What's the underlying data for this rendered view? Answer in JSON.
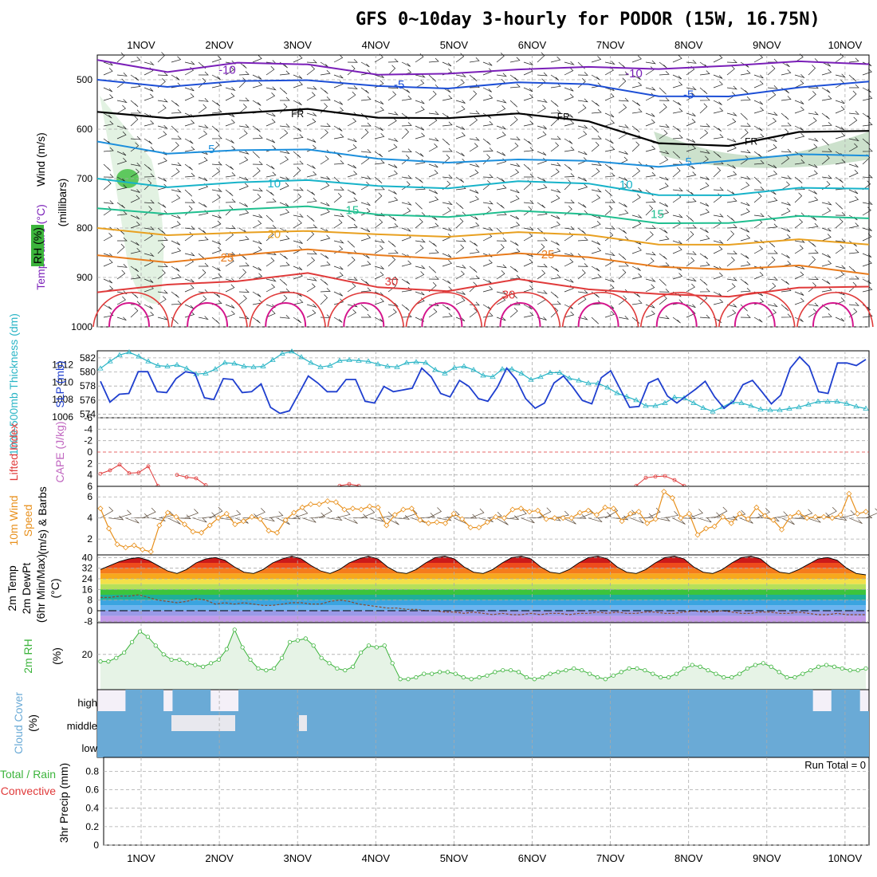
{
  "title": "GFS 0~10day 3-hourly for PODOR (15W, 16.75N)",
  "dates": [
    "1NOV",
    "2NOV",
    "3NOV",
    "4NOV",
    "5NOV",
    "6NOV",
    "7NOV",
    "8NOV",
    "9NOV",
    "10NOV"
  ],
  "colors": {
    "temp_cold": "#7a1fb8",
    "temp_m5": "#1d4fd6",
    "temp_fr": "#000000",
    "temp_5": "#1c8fdc",
    "temp_10": "#17b3c9",
    "temp_15": "#1fbf8f",
    "temp_20": "#e8a020",
    "temp_25": "#e87b1c",
    "temp_30": "#e03a3a",
    "temp_35": "#d4148c",
    "rh": "#3cb43c",
    "thickness": "#2ab5c6",
    "slp": "#1f3fcf",
    "lifted": "#e03a3a",
    "wind": "#e8901c",
    "cloud": "#6aaad6",
    "dewpoint": "#8b4a2a",
    "rain": "#3cb43c",
    "conv": "#e03a3a"
  },
  "chart_data": [
    {
      "panel": "upper_air",
      "type": "line",
      "ylabel_wind": "Wind (m/s)",
      "ylabel_temp": "Temperature (°C)",
      "ylabel_rh": "RH (%)",
      "ylabel_units": "(millibars)",
      "y_ticks": [
        "500",
        "600",
        "700",
        "800",
        "900",
        "1000"
      ],
      "ylim": [
        450,
        1000
      ],
      "contour_labels": [
        {
          "text": "-10",
          "x": 1.1,
          "p": 480
        },
        {
          "text": "-10",
          "x": 6.3,
          "p": 487
        },
        {
          "text": "-5",
          "x": 3.3,
          "p": 510
        },
        {
          "text": "-5",
          "x": 7.0,
          "p": 530
        },
        {
          "text": "FR",
          "x": 2.0,
          "p": 568
        },
        {
          "text": "FR",
          "x": 5.4,
          "p": 573
        },
        {
          "text": "FR",
          "x": 7.8,
          "p": 623
        },
        {
          "text": "5",
          "x": 0.9,
          "p": 640
        },
        {
          "text": "5",
          "x": 7.0,
          "p": 666
        },
        {
          "text": "10",
          "x": 1.7,
          "p": 710
        },
        {
          "text": "10",
          "x": 6.2,
          "p": 712
        },
        {
          "text": "15",
          "x": 2.7,
          "p": 764
        },
        {
          "text": "15",
          "x": 6.6,
          "p": 772
        },
        {
          "text": "20",
          "x": 1.7,
          "p": 812
        },
        {
          "text": "25",
          "x": 1.1,
          "p": 860
        },
        {
          "text": "25",
          "x": 5.2,
          "p": 853
        },
        {
          "text": "30",
          "x": 3.2,
          "p": 908
        },
        {
          "text": "30",
          "x": 4.7,
          "p": 935
        }
      ]
    },
    {
      "panel": "thickness_slp",
      "type": "line",
      "ylabel_thickness": "1000-500mb Thickness (dm)",
      "ylabel_slp": "SLP (mb)",
      "thickness_ticks": [
        "582",
        "580",
        "578",
        "576",
        "574"
      ],
      "slp_ticks": [
        "1012",
        "1010",
        "1008",
        "1006"
      ],
      "series": [
        {
          "name": "1000-500mb Thickness (dm)",
          "ylim": [
            573.5,
            583
          ],
          "values": [
            580.5,
            581.5,
            582.4,
            582.8,
            582.2,
            581.5,
            580.9,
            580.8,
            581.0,
            580.5,
            579.7,
            579.8,
            580.4,
            581.3,
            581.2,
            580.8,
            580.7,
            580.8,
            581.7,
            582.6,
            582.9,
            582.1,
            581.3,
            580.7,
            580.9,
            581.6,
            581.7,
            581.6,
            581.5,
            581.1,
            580.8,
            580.7,
            581.3,
            581.4,
            581.3,
            580.3,
            579.8,
            580.6,
            580.8,
            580.3,
            579.5,
            579.3,
            580.4,
            580.4,
            579.8,
            578.9,
            579.3,
            579.9,
            579.9,
            579.1,
            578.8,
            578.4,
            578.4,
            577.8,
            577.0,
            576.5,
            576.0,
            575.2,
            575.2,
            575.6,
            576.4,
            576.3,
            575.6,
            574.9,
            574.4,
            575.0,
            575.7,
            575.6,
            575.2,
            574.7,
            574.6,
            574.6,
            574.8,
            575.0,
            575.4,
            575.8,
            575.8,
            575.8,
            575.5,
            575.1,
            574.8
          ]
        },
        {
          "name": "SLP (mb)",
          "ylim": [
            1005.9,
            1013.6
          ],
          "values": [
            1010.1,
            1007.7,
            1008.6,
            1008.7,
            1011.2,
            1011.2,
            1008.9,
            1008.8,
            1010.4,
            1011.2,
            1011.0,
            1008.2,
            1008.0,
            1010.4,
            1010.3,
            1008.8,
            1008.9,
            1009.8,
            1007.1,
            1006.4,
            1006.7,
            1008.7,
            1010.7,
            1009.9,
            1008.9,
            1008.9,
            1010.3,
            1010.3,
            1007.8,
            1007.6,
            1009.5,
            1008.9,
            1009.1,
            1009.3,
            1011.6,
            1010.6,
            1008.7,
            1008.3,
            1010.2,
            1009.5,
            1008.1,
            1007.8,
            1009.4,
            1011.6,
            1010.3,
            1008.1,
            1007.0,
            1007.6,
            1009.9,
            1010.7,
            1009.4,
            1007.9,
            1007.5,
            1010.5,
            1011.3,
            1009.2,
            1007.1,
            1007.2,
            1009.9,
            1010.4,
            1008.4,
            1007.6,
            1008.4,
            1009.2,
            1010.1,
            1008.3,
            1007.0,
            1007.8,
            1009.7,
            1010.2,
            1008.9,
            1007.5,
            1008.5,
            1011.6,
            1012.9,
            1011.8,
            1008.9,
            1008.7,
            1012.2,
            1012.2,
            1011.9,
            1012.6
          ]
        }
      ]
    },
    {
      "panel": "stability",
      "type": "line",
      "ylabel_lifted": "Lifted Index",
      "ylabel_cape": "CAPE (J/kg)",
      "y_ticks": [
        "-6",
        "-4",
        "-2",
        "0",
        "2",
        "4",
        "6"
      ],
      "ylim": [
        -6,
        6
      ],
      "series": [
        {
          "name": "Lifted Index",
          "points": [
            [
              0,
              3.8
            ],
            [
              1,
              3.2
            ],
            [
              2,
              2.2
            ],
            [
              3,
              3.7
            ],
            [
              4,
              3.6
            ],
            [
              5,
              2.5
            ],
            [
              6,
              5.9
            ]
          ]
        },
        {
          "name": "Lifted Index",
          "points": [
            [
              8,
              4.0
            ],
            [
              9,
              4.4
            ],
            [
              10,
              4.6
            ],
            [
              11,
              5.8
            ]
          ]
        },
        {
          "name": "Lifted Index",
          "points": [
            [
              25,
              5.9
            ],
            [
              26,
              5.6
            ],
            [
              27,
              5.9
            ]
          ]
        },
        {
          "name": "Lifted Index",
          "points": [
            [
              56,
              5.9
            ],
            [
              57,
              4.5
            ],
            [
              58,
              4.3
            ],
            [
              59,
              4.2
            ],
            [
              60,
              4.9
            ],
            [
              61,
              5.9
            ]
          ]
        }
      ]
    },
    {
      "panel": "wind10m",
      "type": "line",
      "ylabel_wind": "10m Wind",
      "ylabel_speed": "Speed",
      "ylabel_units": "(m/s) & Barbs",
      "y_ticks": [
        "2",
        "4",
        "6"
      ],
      "ylim": [
        0.5,
        7
      ],
      "series": [
        {
          "name": "10m Wind Speed (m/s)",
          "values": [
            4.9,
            3.0,
            1.5,
            1.2,
            1.4,
            1.0,
            0.8,
            3.3,
            4.5,
            4.1,
            3.4,
            2.7,
            2.6,
            3.3,
            4.0,
            4.4,
            3.4,
            3.7,
            4.1,
            3.9,
            2.8,
            2.6,
            3.8,
            4.5,
            5.0,
            5.3,
            5.3,
            5.6,
            5.5,
            4.8,
            4.9,
            4.8,
            5.1,
            5.0,
            3.3,
            4.3,
            4.8,
            4.9,
            3.8,
            3.5,
            3.6,
            3.5,
            4.4,
            3.9,
            3.1,
            3.1,
            3.6,
            4.1,
            4.0,
            4.8,
            4.9,
            4.6,
            4.7,
            3.9,
            4.0,
            4.0,
            4.0,
            4.5,
            4.7,
            4.3,
            5.0,
            4.9,
            3.7,
            4.4,
            4.6,
            3.5,
            3.9,
            6.5,
            5.9,
            4.0,
            4.4,
            2.4,
            3.0,
            3.2,
            4.1,
            3.5,
            4.4,
            3.9,
            5.0,
            4.2,
            3.8,
            2.9,
            4.1,
            4.5,
            4.0,
            4.1,
            4.1,
            4.0,
            4.3,
            6.3,
            4.4,
            4.6
          ]
        }
      ]
    },
    {
      "panel": "temperature2m",
      "type": "area",
      "ylabel_temp": "2m Temp",
      "ylabel_dew": "2m DewPt",
      "ylabel_range": "(6hr Min/Max)",
      "ylabel_units": "(°C)",
      "y_ticks": [
        "40",
        "32",
        "24",
        "16",
        "8",
        "0",
        "-8"
      ],
      "ylim": [
        -9,
        42
      ],
      "series": [
        {
          "name": "2m Temp",
          "values": [
            31,
            34,
            37,
            39,
            40,
            38,
            34,
            30,
            28,
            31,
            36,
            39,
            40,
            38,
            33,
            29,
            28,
            31,
            36,
            39,
            41,
            39,
            34,
            30,
            28,
            31,
            36,
            39,
            41,
            39,
            33,
            29,
            28,
            31,
            36,
            40,
            41,
            39,
            33,
            29,
            28,
            31,
            36,
            40,
            41,
            39,
            33,
            29,
            28,
            31,
            36,
            40,
            41,
            39,
            33,
            29,
            28,
            31,
            36,
            40,
            41,
            39,
            33,
            29,
            28,
            31,
            36,
            40,
            41,
            39,
            33,
            29,
            28,
            31,
            35,
            39,
            40,
            38,
            32,
            28,
            27
          ]
        },
        {
          "name": "2m DewPt",
          "values": [
            10,
            10,
            11,
            11,
            12,
            10,
            8,
            7,
            6,
            7,
            9,
            8,
            5,
            6,
            5,
            6,
            5,
            4,
            4,
            5,
            6,
            6,
            5,
            5,
            7,
            8,
            7,
            5,
            4,
            3,
            2,
            2,
            1,
            1,
            0,
            0,
            -1,
            -1,
            -2,
            -1,
            -2,
            -3,
            -2,
            -3,
            -3,
            -2,
            -3,
            -2,
            -2,
            -3,
            -2,
            -2,
            -1,
            -2,
            -1,
            -2,
            -2,
            -1,
            -1,
            -2,
            -2,
            -1,
            0,
            -1,
            -1,
            0,
            -1,
            -2,
            -2,
            -1,
            -1,
            -2,
            -2,
            -1,
            -2,
            -3,
            -3,
            -2,
            -3,
            -3,
            -3
          ]
        }
      ]
    },
    {
      "panel": "rh2m",
      "type": "area",
      "ylabel_rh": "2m RH",
      "ylabel_units": "(%)",
      "y_ticks": [
        "20"
      ],
      "ylim": [
        0,
        38
      ],
      "series": [
        {
          "name": "2m RH",
          "values": [
            16,
            16,
            18,
            21,
            27,
            33,
            30,
            25,
            20,
            17,
            17,
            15,
            14,
            13,
            15,
            17,
            23,
            34,
            24,
            17,
            12,
            11,
            12,
            18,
            27,
            28,
            29,
            25,
            18,
            15,
            12,
            11,
            13,
            21,
            25,
            24,
            25,
            15,
            6,
            6,
            7,
            9,
            9,
            10,
            10,
            9,
            7,
            6,
            7,
            8,
            10,
            11,
            11,
            10,
            7,
            6,
            7,
            9,
            10,
            11,
            12,
            11,
            9,
            7,
            6,
            8,
            10,
            12,
            12,
            11,
            9,
            7,
            7,
            9,
            12,
            14,
            13,
            11,
            9,
            7,
            7,
            9,
            12,
            14,
            15,
            13,
            10,
            7,
            7,
            9,
            11,
            13,
            14,
            13,
            12,
            11,
            11,
            12
          ]
        }
      ]
    },
    {
      "panel": "cloud",
      "type": "heatmap",
      "ylabel_cloud": "Cloud Cover",
      "ylabel_units": "(%)",
      "levels": [
        "high",
        "middle",
        "low"
      ]
    },
    {
      "panel": "precip",
      "type": "bar",
      "ylabel_total": "Total / Rain",
      "ylabel_conv": "Convective",
      "ylabel_units": "3hr Precip (mm)",
      "y_ticks": [
        "0",
        "0.2",
        "0.4",
        "0.6",
        "0.8"
      ],
      "ylim": [
        0,
        0.95
      ],
      "run_total": "Run Total = 0",
      "values": []
    }
  ]
}
